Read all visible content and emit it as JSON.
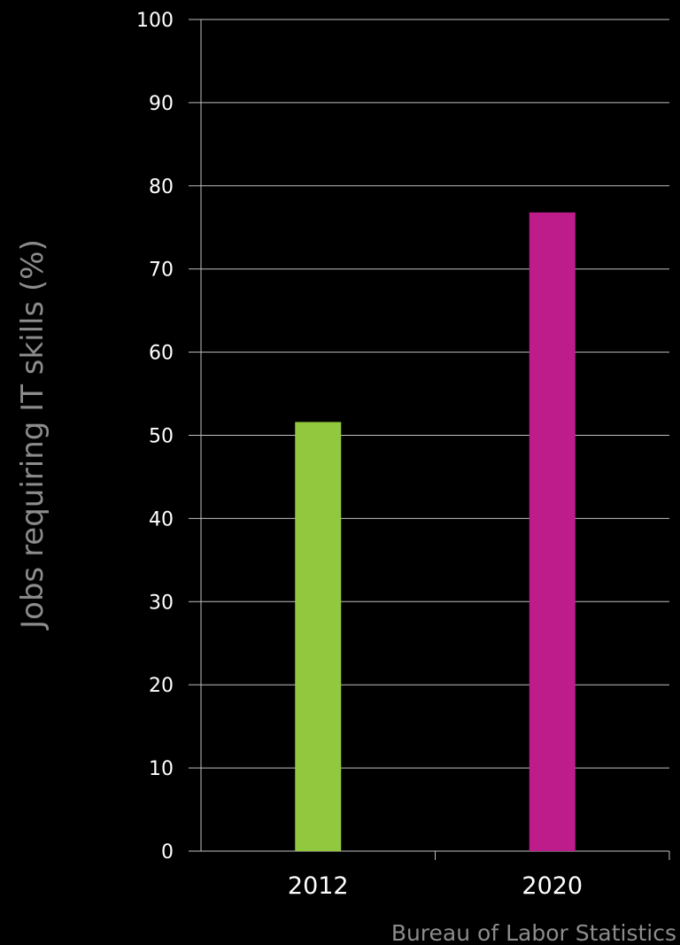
{
  "chart_data": {
    "type": "bar",
    "categories": [
      "2012",
      "2020"
    ],
    "values": [
      51.6,
      76.8
    ],
    "colors": [
      "#92c83e",
      "#bf1c8b"
    ],
    "title": "",
    "xlabel": "",
    "ylabel": "Jobs requiring IT skills (%)",
    "ylim": [
      0,
      100
    ],
    "yticks": [
      "0",
      "10",
      "20",
      "30",
      "40",
      "50",
      "60",
      "70",
      "80",
      "90",
      "100"
    ],
    "grid": true,
    "legend": "none",
    "source": "Bureau of Labor Statistics"
  }
}
